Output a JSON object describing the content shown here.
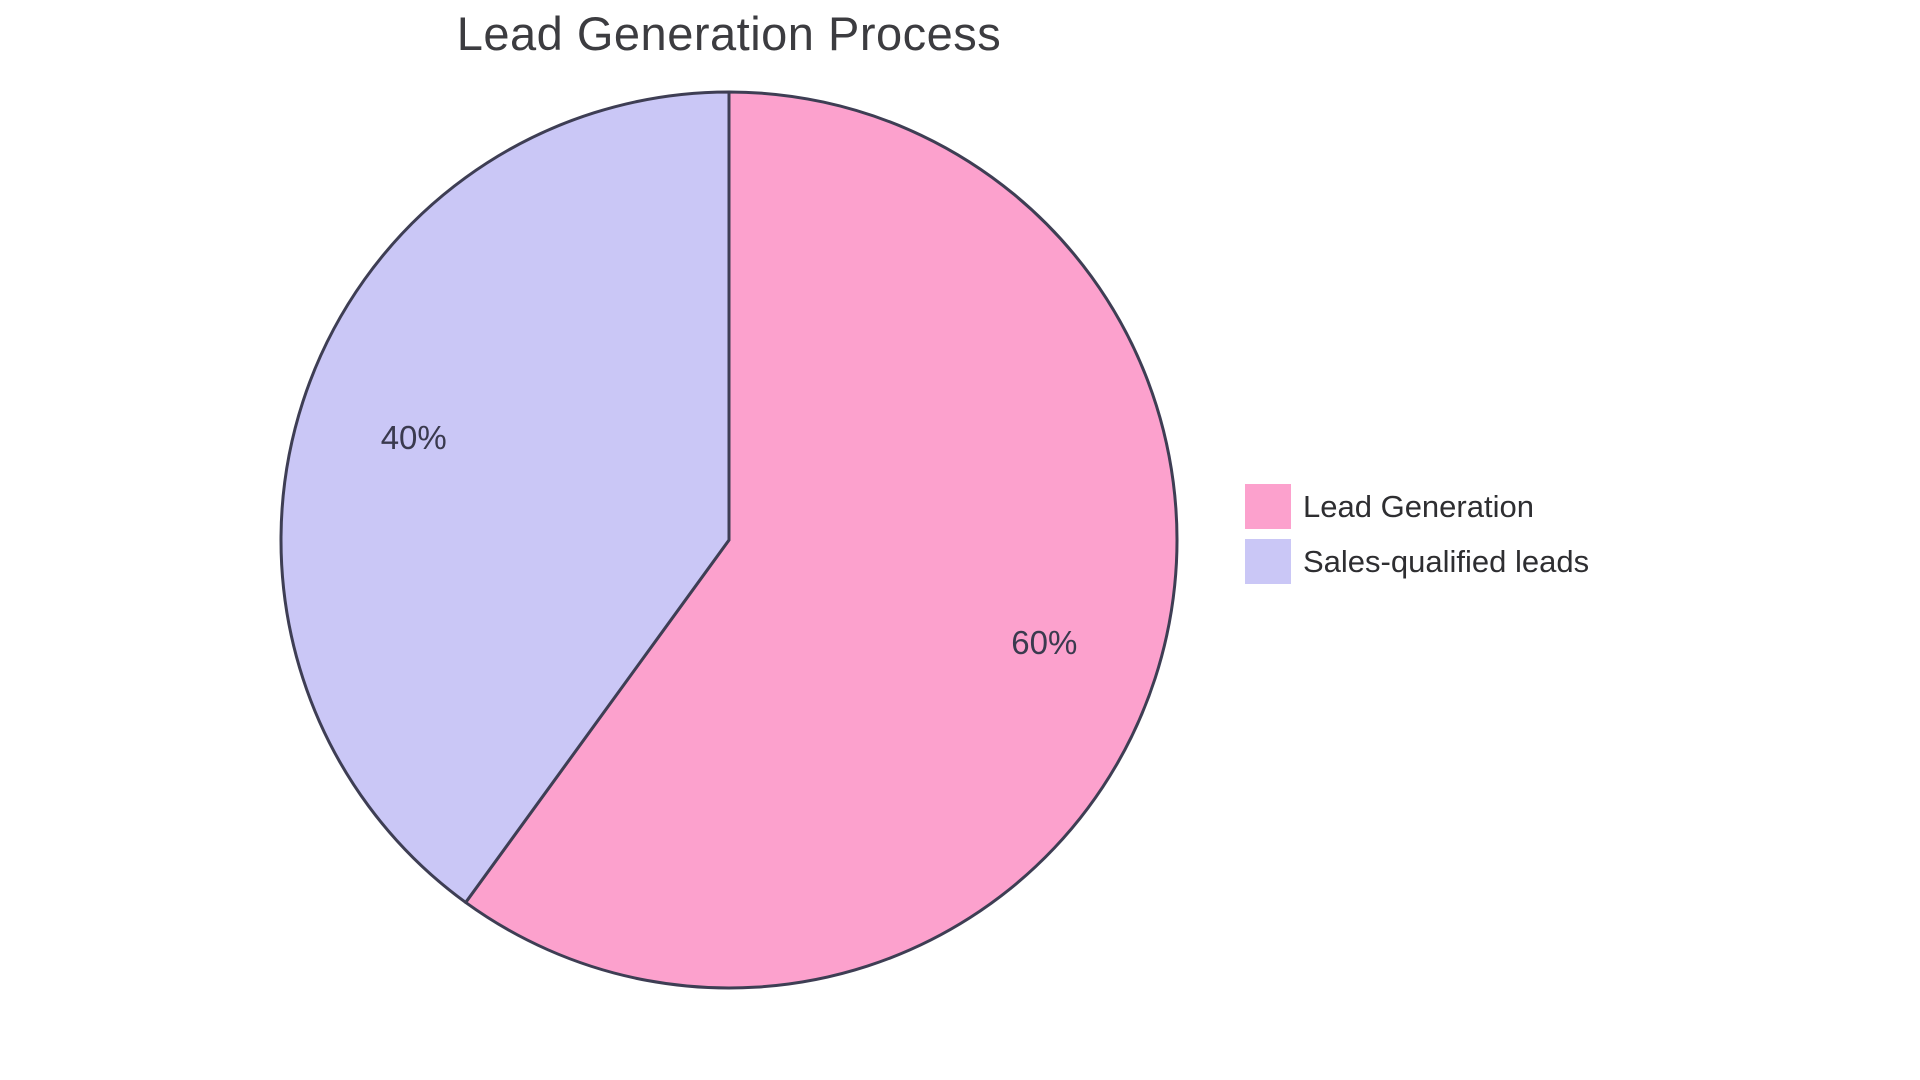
{
  "page": {
    "background_color": "#FFFFFF"
  },
  "chart_data": {
    "type": "pie",
    "title": "Lead Generation Process",
    "categories": [
      "Lead Generation",
      "Sales-qualified leads"
    ],
    "values": [
      60,
      40
    ],
    "slice_labels": [
      "60%",
      "40%"
    ],
    "colors": [
      "#FCA1CD",
      "#CAC7F6"
    ],
    "slice_border_color": "#3E3E54",
    "slice_border_width": 3,
    "slice_label_color": "#3A3A4E",
    "slice_label_font_size": 33,
    "slice_label_radius_factor": 0.74,
    "title_color": "#3C3C40",
    "legend_text_color": "#2E2E31",
    "legend_position": "right",
    "start_angle_deg": 0,
    "direction": "clockwise",
    "radius_px": 448
  }
}
